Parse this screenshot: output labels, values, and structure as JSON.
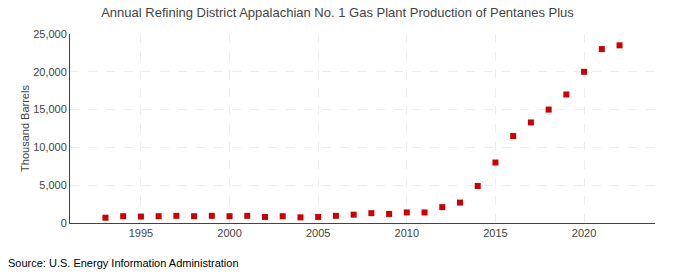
{
  "chart_data": {
    "type": "scatter",
    "title": "Annual Refining District Appalachian No. 1 Gas Plant Production of Pentanes Plus",
    "y_label": "Thousand Barrels",
    "annotations": [
      "Source: U.S. Energy Information Administration"
    ],
    "x": [
      1993,
      1994,
      1995,
      1996,
      1997,
      1998,
      1999,
      2000,
      2001,
      2002,
      2003,
      2004,
      2005,
      2006,
      2007,
      2008,
      2009,
      2010,
      2011,
      2012,
      2013,
      2014,
      2015,
      2016,
      2017,
      2018,
      2019,
      2020,
      2021,
      2022
    ],
    "values": [
      700,
      900,
      850,
      900,
      950,
      900,
      950,
      900,
      950,
      800,
      900,
      750,
      800,
      950,
      1100,
      1300,
      1200,
      1400,
      1400,
      2100,
      2700,
      4900,
      8000,
      11500,
      13300,
      15000,
      17000,
      20000,
      23000,
      23500
    ],
    "color": "#cc0000",
    "marker": "square",
    "xlim": [
      1991,
      2024
    ],
    "xticks": [
      1995,
      2000,
      2005,
      2010,
      2015,
      2020
    ],
    "ylim": [
      0,
      25000
    ],
    "yticks": [
      0,
      {
        "value": 5000,
        "label": "5,000"
      },
      {
        "value": 10000,
        "label": "10,000"
      },
      {
        "value": 15000,
        "label": "15,000"
      },
      {
        "value": 20000,
        "label": "20,000"
      },
      {
        "value": 25000,
        "label": "25,000"
      }
    ],
    "grid": true
  }
}
